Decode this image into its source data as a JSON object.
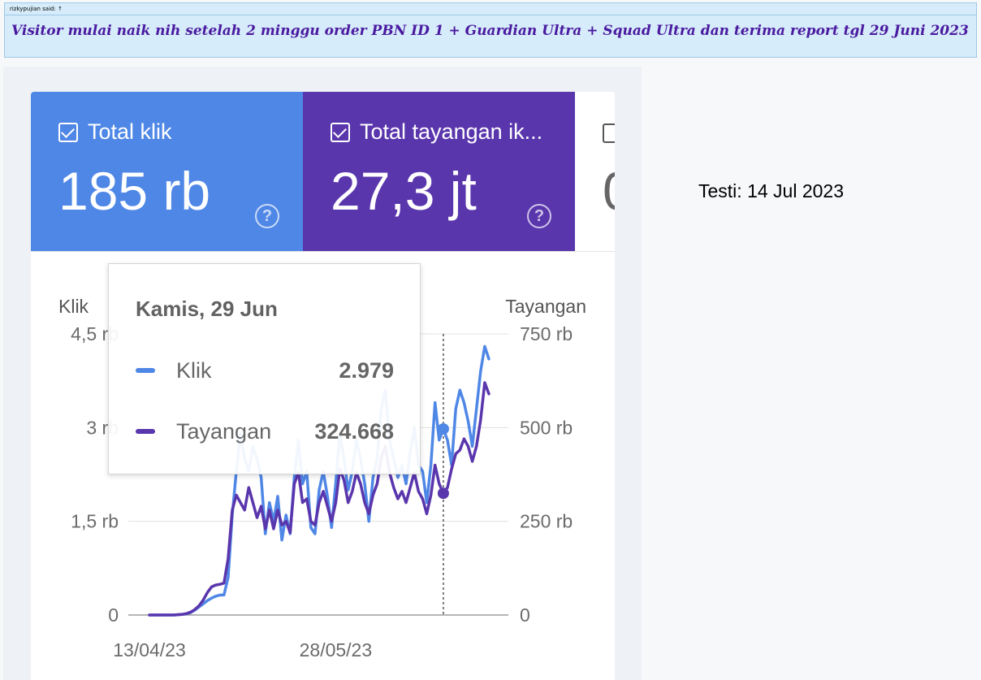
{
  "forum": {
    "author": "rizkypujian said: ↑",
    "message": "Visitor mulai naik nih setelah 2 minggu order PBN ID 1 + Guardian Ultra + Squad Ultra dan terima report tgl 29 Juni 2023"
  },
  "metrics": {
    "clicks": {
      "label": "Total klik",
      "value": "185 rb",
      "color": "#4f87e6"
    },
    "impressions": {
      "label": "Total tayangan ik...",
      "value": "27,3 jt",
      "color": "#5a36ad"
    },
    "third": {
      "value": "0"
    }
  },
  "tooltip": {
    "date": "Kamis, 29 Jun",
    "clicks_label": "Klik",
    "clicks_value": "2.979",
    "impressions_label": "Tayangan",
    "impressions_value": "324.668"
  },
  "testi": "Testi: 14 Jul 2023",
  "chart_data": {
    "type": "line",
    "left_axis_label": "Klik",
    "right_axis_label": "Tayangan",
    "left_ticks": [
      "0",
      "1,5 rb",
      "3 rb",
      "4,5 rb"
    ],
    "right_ticks": [
      "0",
      "250 rb",
      "500 rb",
      "750 rb"
    ],
    "x_tick_labels": [
      "13/04/23",
      "28/05/23"
    ],
    "left_ylim": [
      0,
      4500
    ],
    "right_ylim": [
      0,
      750000
    ],
    "highlight_date": "2023-06-29",
    "x_start": "2023-04-13",
    "series": [
      {
        "name": "Klik",
        "axis": "left",
        "color": "#4f87e6",
        "values": [
          0,
          0,
          0,
          0,
          0,
          0,
          0,
          5,
          10,
          20,
          40,
          80,
          130,
          180,
          230,
          270,
          300,
          320,
          320,
          600,
          1600,
          2300,
          2900,
          2500,
          2300,
          2700,
          2500,
          2200,
          1300,
          1800,
          1500,
          1900,
          1200,
          1600,
          1300,
          2200,
          2800,
          2100,
          2300,
          1400,
          1300,
          2000,
          2300,
          1900,
          1400,
          2100,
          2900,
          2500,
          2000,
          2300,
          2800,
          2500,
          2100,
          1500,
          2200,
          2500,
          3300,
          3600,
          2800,
          2500,
          2200,
          2400,
          2100,
          2600,
          3000,
          2400,
          2300,
          1800,
          2400,
          3400,
          2800,
          2979,
          2800,
          2400,
          3300,
          3600,
          3400,
          3100,
          2700,
          3300,
          3900,
          4300,
          4100
        ],
        "y_units_note": "Klik (left axis)"
      },
      {
        "name": "Tayangan",
        "axis": "right",
        "color": "#5a36ad",
        "values": [
          0,
          0,
          0,
          0,
          0,
          0,
          0,
          1000,
          2000,
          4000,
          8000,
          15000,
          25000,
          40000,
          60000,
          75000,
          80000,
          82000,
          85000,
          150000,
          280000,
          320000,
          300000,
          280000,
          340000,
          300000,
          260000,
          290000,
          230000,
          280000,
          230000,
          280000,
          240000,
          250000,
          220000,
          350000,
          380000,
          300000,
          310000,
          250000,
          240000,
          300000,
          330000,
          290000,
          250000,
          300000,
          390000,
          360000,
          300000,
          330000,
          380000,
          350000,
          300000,
          270000,
          320000,
          350000,
          420000,
          450000,
          380000,
          340000,
          310000,
          330000,
          300000,
          340000,
          380000,
          330000,
          310000,
          270000,
          320000,
          400000,
          350000,
          324668,
          340000,
          390000,
          430000,
          440000,
          470000,
          450000,
          410000,
          450000,
          520000,
          620000,
          590000
        ]
      }
    ]
  }
}
